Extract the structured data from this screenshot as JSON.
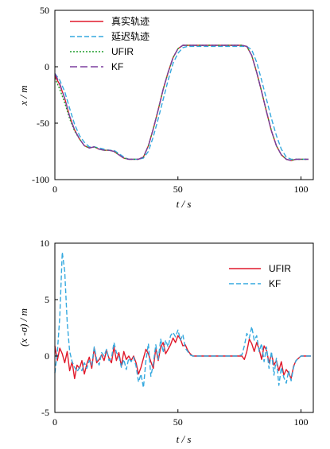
{
  "colors": {
    "true": "#e0192b",
    "delayed": "#35a9df",
    "ufir": "#1f9e2c",
    "kf": "#7b3f9e",
    "panel2_ufir": "#e0192b",
    "panel2_kf": "#35a9df"
  },
  "chart_data": [
    {
      "type": "line",
      "title": "",
      "xlabel": "t / s",
      "ylabel": "x / m",
      "xlim": [
        0,
        105
      ],
      "ylim": [
        -100,
        50
      ],
      "xticks": [
        0,
        50,
        100
      ],
      "yticks": [
        50,
        0,
        -50,
        -100
      ],
      "xtick_labels": [
        "0",
        "50",
        "100"
      ],
      "ytick_labels": [
        "50",
        "0",
        "-50",
        "-100"
      ],
      "legend_position": "top-left",
      "series": [
        {
          "name": "真实轨迹",
          "style": "solid",
          "x": [
            0,
            2,
            4,
            6,
            8,
            10,
            12,
            14,
            16,
            18,
            20,
            22,
            24,
            26,
            28,
            30,
            32,
            34,
            36,
            38,
            40,
            42,
            44,
            46,
            48,
            50,
            52,
            54,
            56,
            60,
            66,
            72,
            76,
            78,
            80,
            82,
            84,
            86,
            88,
            90,
            92,
            94,
            96,
            98,
            100,
            103
          ],
          "y": [
            -8,
            -16,
            -28,
            -44,
            -56,
            -64,
            -70,
            -72,
            -71,
            -73,
            -74,
            -74,
            -75,
            -78,
            -81,
            -82,
            -82,
            -82,
            -80,
            -70,
            -55,
            -38,
            -20,
            -5,
            8,
            16,
            19,
            19,
            19,
            19,
            19,
            19,
            19,
            18,
            10,
            -5,
            -22,
            -40,
            -57,
            -70,
            -78,
            -82,
            -83,
            -82,
            -82,
            -82
          ]
        },
        {
          "name": "延迟轨迹",
          "style": "dashed",
          "x": [
            0,
            2,
            4,
            6,
            8,
            10,
            12,
            14,
            16,
            18,
            20,
            22,
            24,
            26,
            28,
            30,
            32,
            34,
            36,
            38,
            40,
            42,
            44,
            46,
            48,
            50,
            52,
            54,
            56,
            60,
            66,
            72,
            76,
            78,
            80,
            82,
            84,
            86,
            88,
            90,
            92,
            94,
            96,
            98,
            100,
            103
          ],
          "y": [
            -6,
            -12,
            -22,
            -37,
            -51,
            -61,
            -67,
            -71,
            -71,
            -72,
            -73,
            -74,
            -74,
            -77,
            -80,
            -82,
            -82,
            -82,
            -81,
            -75,
            -62,
            -46,
            -29,
            -12,
            3,
            12,
            17,
            18,
            18,
            18,
            18,
            18,
            18,
            18,
            15,
            4,
            -12,
            -29,
            -46,
            -61,
            -73,
            -80,
            -82,
            -82,
            -82,
            -82
          ]
        },
        {
          "name": "UFIR",
          "style": "dotted",
          "x": [
            0,
            2,
            4,
            6,
            8,
            10,
            12,
            14,
            16,
            18,
            20,
            22,
            24,
            26,
            28,
            30,
            32,
            34,
            36,
            38,
            40,
            42,
            44,
            46,
            48,
            50,
            52,
            54,
            56,
            60,
            66,
            72,
            76,
            78,
            80,
            82,
            84,
            86,
            88,
            90,
            92,
            94,
            96,
            98,
            100,
            103
          ],
          "y": [
            -10,
            -20,
            -32,
            -46,
            -57,
            -64,
            -70,
            -72,
            -71,
            -73,
            -74,
            -74,
            -75,
            -78,
            -81,
            -82,
            -82,
            -82,
            -80,
            -70,
            -55,
            -38,
            -20,
            -5,
            8,
            16,
            19,
            19,
            19,
            19,
            19,
            19,
            19,
            18,
            10,
            -5,
            -22,
            -40,
            -57,
            -70,
            -78,
            -82,
            -83,
            -82,
            -82,
            -82
          ]
        },
        {
          "name": "KF",
          "style": "long-dash",
          "x": [
            0,
            2,
            4,
            6,
            8,
            10,
            12,
            14,
            16,
            18,
            20,
            22,
            24,
            26,
            28,
            30,
            32,
            34,
            36,
            38,
            40,
            42,
            44,
            46,
            48,
            50,
            52,
            54,
            56,
            60,
            66,
            72,
            76,
            78,
            80,
            82,
            84,
            86,
            88,
            90,
            92,
            94,
            96,
            98,
            100,
            103
          ],
          "y": [
            -6,
            -15,
            -28,
            -44,
            -56,
            -64,
            -70,
            -72,
            -71,
            -73,
            -74,
            -74,
            -75,
            -78,
            -81,
            -82,
            -82,
            -82,
            -80,
            -70,
            -55,
            -38,
            -20,
            -5,
            8,
            16,
            19,
            19,
            19,
            19,
            19,
            19,
            19,
            18,
            10,
            -5,
            -22,
            -40,
            -57,
            -70,
            -78,
            -82,
            -83,
            -82,
            -82,
            -82
          ]
        }
      ]
    },
    {
      "type": "line",
      "title": "",
      "xlabel": "t / s",
      "ylabel": "(x -σ) / m",
      "xlim": [
        0,
        105
      ],
      "ylim": [
        -5,
        10
      ],
      "xticks": [
        0,
        50,
        100
      ],
      "yticks": [
        10,
        5,
        0,
        -5
      ],
      "xtick_labels": [
        "0",
        "50",
        "100"
      ],
      "ytick_labels": [
        "10",
        "5",
        "0",
        "-5"
      ],
      "legend_position": "top-right",
      "series": [
        {
          "name": "UFIR",
          "style": "solid",
          "x": [
            0,
            1,
            2,
            3,
            4,
            5,
            6,
            7,
            8,
            9,
            10,
            11,
            12,
            13,
            14,
            15,
            16,
            17,
            18,
            19,
            20,
            21,
            22,
            23,
            24,
            25,
            26,
            27,
            28,
            29,
            30,
            31,
            32,
            33,
            34,
            35,
            36,
            37,
            38,
            39,
            40,
            41,
            42,
            43,
            44,
            45,
            46,
            47,
            48,
            49,
            50,
            51,
            52,
            53,
            54,
            55,
            56,
            58,
            62,
            66,
            70,
            74,
            76,
            77,
            78,
            79,
            80,
            81,
            82,
            83,
            84,
            85,
            86,
            87,
            88,
            89,
            90,
            91,
            92,
            93,
            94,
            95,
            96,
            97,
            98,
            100,
            104
          ],
          "y": [
            0.9,
            -0.4,
            0.7,
            0.2,
            -0.6,
            0.4,
            -1.3,
            -0.5,
            -2.0,
            -0.8,
            -1.1,
            -0.4,
            -1.6,
            -0.7,
            -0.1,
            -1.1,
            0.7,
            -0.6,
            -0.3,
            0.1,
            -0.4,
            0.5,
            -0.2,
            -0.6,
            0.8,
            -0.4,
            0.3,
            -0.9,
            0.4,
            -0.3,
            0.0,
            -0.4,
            0.0,
            -0.6,
            -1.6,
            -1.0,
            -0.2,
            0.6,
            0.2,
            -0.5,
            -1.1,
            0.7,
            -0.4,
            0.8,
            1.2,
            0.2,
            0.6,
            1.0,
            1.6,
            1.2,
            1.8,
            1.5,
            0.9,
            1.0,
            0.5,
            0.2,
            0.0,
            0.0,
            0.0,
            0.0,
            0.0,
            0.0,
            0.0,
            -0.3,
            0.4,
            1.5,
            1.1,
            0.4,
            1.2,
            0.6,
            -0.3,
            0.9,
            0.5,
            -0.6,
            0.2,
            -0.8,
            -0.4,
            -1.3,
            -0.5,
            -1.7,
            -1.2,
            -1.5,
            -2.0,
            -0.9,
            -0.4,
            0.0,
            0.0
          ]
        },
        {
          "name": "KF",
          "style": "dashed",
          "x": [
            0,
            1,
            2,
            3,
            4,
            5,
            6,
            7,
            8,
            9,
            10,
            11,
            12,
            13,
            14,
            15,
            16,
            17,
            18,
            19,
            20,
            21,
            22,
            23,
            24,
            25,
            26,
            27,
            28,
            29,
            30,
            31,
            32,
            33,
            34,
            35,
            36,
            37,
            38,
            39,
            40,
            41,
            42,
            43,
            44,
            45,
            46,
            47,
            48,
            49,
            50,
            51,
            52,
            53,
            54,
            55,
            56,
            58,
            62,
            66,
            70,
            74,
            76,
            77,
            78,
            79,
            80,
            81,
            82,
            83,
            84,
            85,
            86,
            87,
            88,
            89,
            90,
            91,
            92,
            93,
            94,
            95,
            96,
            97,
            98,
            100,
            104
          ],
          "y": [
            -1.5,
            0.3,
            3.5,
            9.2,
            7.5,
            3.0,
            0.4,
            -0.5,
            -1.0,
            -1.4,
            -1.0,
            -1.3,
            -0.6,
            -1.1,
            -0.4,
            -0.8,
            0.8,
            -0.3,
            -0.8,
            0.3,
            0.0,
            0.6,
            -0.4,
            -0.2,
            1.2,
            0.3,
            0.0,
            -1.0,
            -0.3,
            -1.2,
            -0.2,
            -0.5,
            -0.1,
            -0.9,
            -2.3,
            -1.6,
            -2.8,
            -0.4,
            1.1,
            -1.8,
            -0.7,
            1.0,
            -0.3,
            1.5,
            0.3,
            1.4,
            0.8,
            1.8,
            2.1,
            1.7,
            2.3,
            1.4,
            1.9,
            0.7,
            0.4,
            0.1,
            0.0,
            0.0,
            0.0,
            0.0,
            0.0,
            0.0,
            0.1,
            0.9,
            2.0,
            1.6,
            2.6,
            1.4,
            1.8,
            0.4,
            1.1,
            -0.5,
            0.8,
            -1.1,
            0.4,
            -1.7,
            -0.2,
            -2.6,
            -1.0,
            -1.9,
            -2.4,
            -1.3,
            -2.2,
            -1.0,
            -0.4,
            0.0,
            0.0
          ]
        }
      ]
    }
  ]
}
